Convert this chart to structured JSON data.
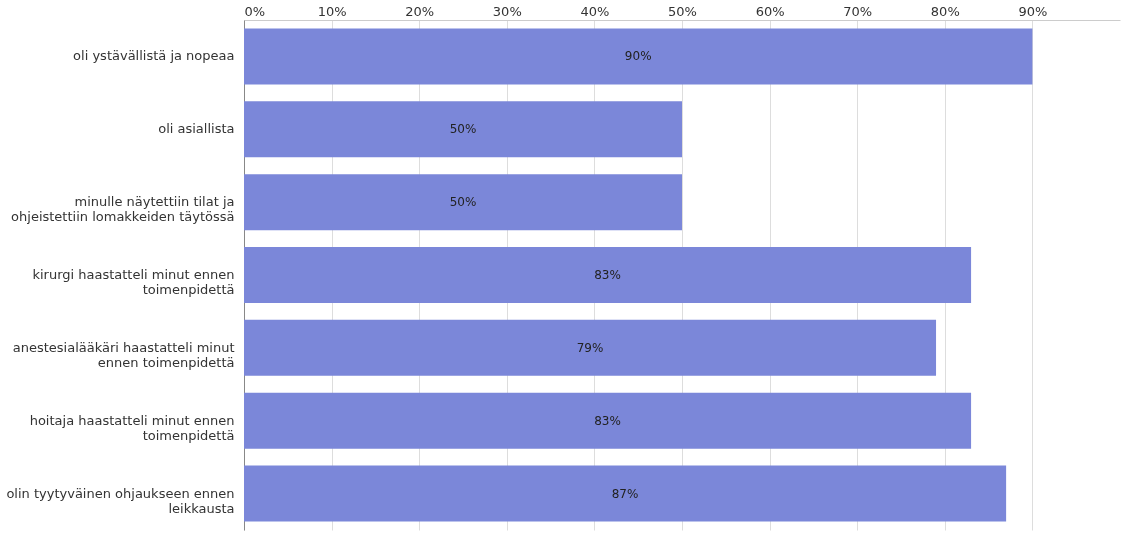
{
  "chart_data": {
    "type": "bar",
    "orientation": "horizontal",
    "categories": [
      "oli ystävällistä ja nopeaa",
      "oli asiallista",
      "minulle näytettiin tilat ja ohjeistettiin lomakkeiden täytössä",
      "kirurgi haastatteli minut ennen toimenpidettä",
      "anestesialääkäri haastatteli minut ennen toimenpidettä",
      "hoitaja haastatteli minut ennen toimenpidettä",
      "olin tyytyväinen ohjaukseen ennen leikkausta"
    ],
    "values": [
      90,
      50,
      50,
      83,
      79,
      83,
      87
    ],
    "value_labels": [
      "90%",
      "50%",
      "50%",
      "83%",
      "79%",
      "83%",
      "87%"
    ],
    "color": "#7b87d9",
    "xlim": [
      0,
      100
    ],
    "xticks": [
      {
        "value": 0,
        "label": "0%"
      },
      {
        "value": 10,
        "label": "10%"
      },
      {
        "value": 20,
        "label": "20%"
      },
      {
        "value": 30,
        "label": "30%"
      },
      {
        "value": 40,
        "label": "40%"
      },
      {
        "value": 50,
        "label": "50%"
      },
      {
        "value": 60,
        "label": "60%"
      },
      {
        "value": 70,
        "label": "70%"
      },
      {
        "value": 80,
        "label": "80%"
      },
      {
        "value": 90,
        "label": "90%"
      }
    ],
    "grid": "x"
  }
}
